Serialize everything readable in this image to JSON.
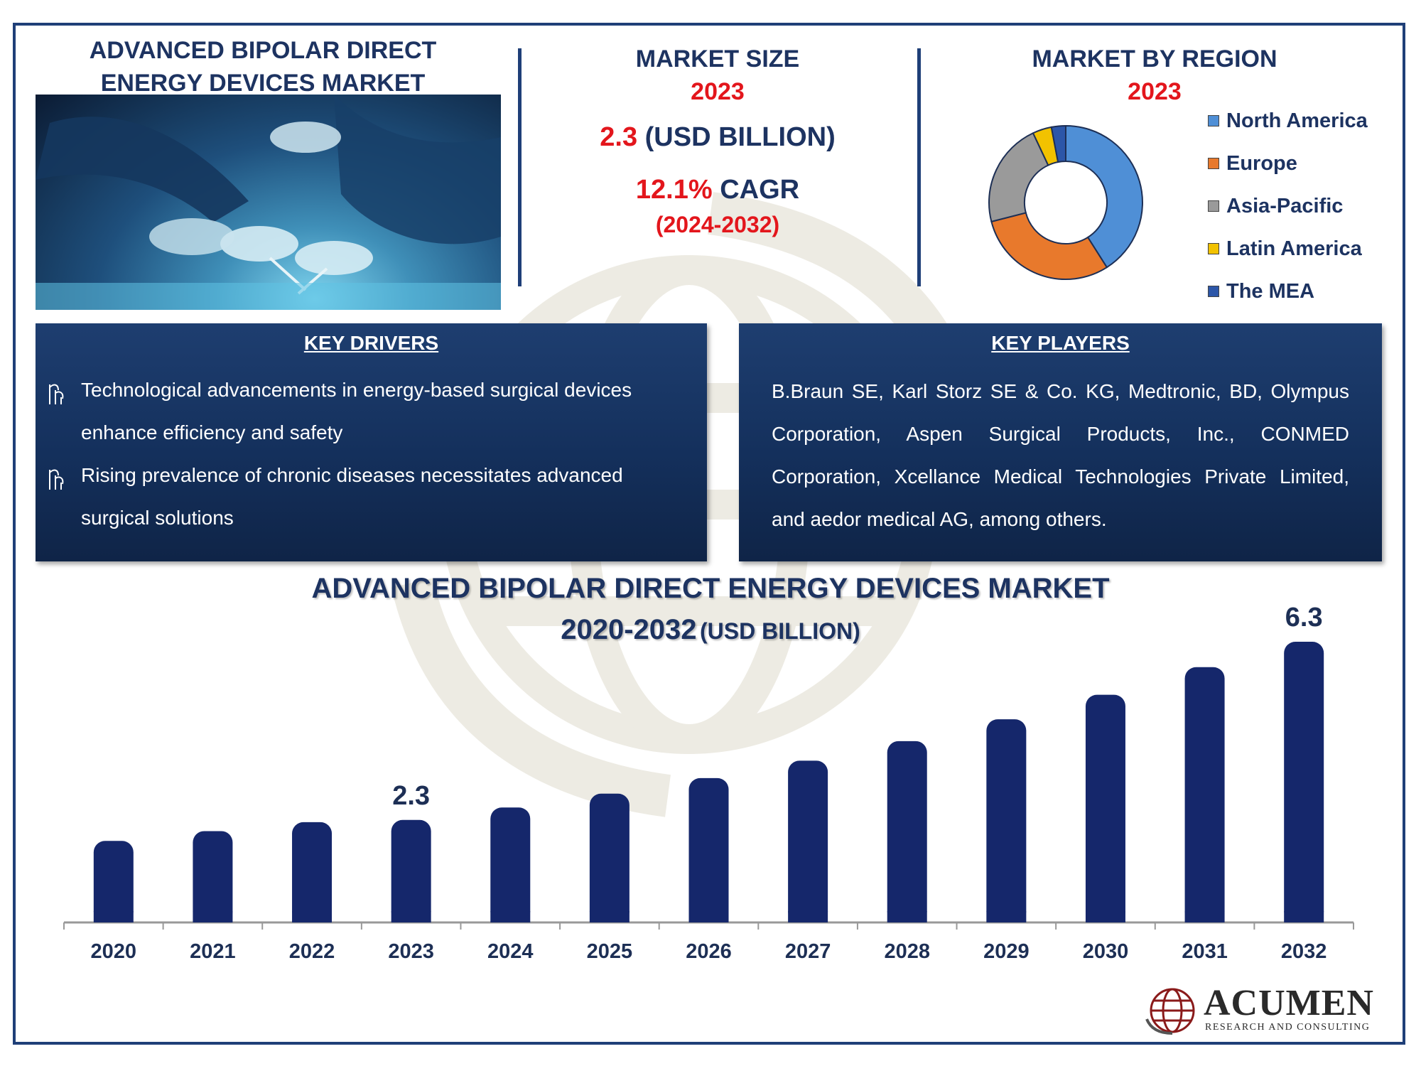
{
  "header": {
    "title": "ADVANCED BIPOLAR DIRECT ENERGY DEVICES MARKET"
  },
  "market_size": {
    "heading": "MARKET SIZE",
    "year": "2023",
    "value": "2.3",
    "unit": "(USD BILLION)",
    "cagr_value": "12.1%",
    "cagr_label": "CAGR",
    "cagr_period": "(2024-2032)"
  },
  "market_by_region": {
    "heading": "MARKET BY REGION",
    "year": "2023"
  },
  "key_drivers": {
    "title": "KEY DRIVERS",
    "items": [
      "Technological advancements in energy-based surgical devices enhance efficiency and safety",
      "Rising prevalence of chronic diseases necessitates advanced surgical solutions"
    ]
  },
  "key_players": {
    "title": "KEY PLAYERS",
    "text": "B.Braun SE, Karl Storz SE & Co. KG, Medtronic, BD, Olympus Corporation, Aspen Surgical Products, Inc., CONMED Corporation, Xcellance Medical Technologies Private Limited, and aedor medical AG, among others."
  },
  "bar_chart_title": {
    "line1": "ADVANCED BIPOLAR DIRECT ENERGY DEVICES MARKET",
    "line2_main": "2020-2032",
    "line2_unit": "(USD BILLION)"
  },
  "logo": {
    "name": "ACUMEN",
    "tagline": "RESEARCH AND CONSULTING"
  },
  "icons": {
    "driver_bullet": "plant-sprout-icon",
    "logo_mark": "globe-icon"
  },
  "chart_data": [
    {
      "type": "pie",
      "variant": "donut",
      "categories": [
        "North America",
        "Europe",
        "Asia-Pacific",
        "Latin America",
        "The MEA"
      ],
      "values": [
        41,
        30,
        22,
        4,
        3
      ],
      "colors": [
        "#4f8fd6",
        "#e8792c",
        "#9a9a9a",
        "#f2c200",
        "#2c56a8"
      ],
      "legend": "right"
    },
    {
      "type": "bar",
      "categories": [
        "2020",
        "2021",
        "2022",
        "2023",
        "2024",
        "2025",
        "2026",
        "2027",
        "2028",
        "2029",
        "2030",
        "2031",
        "2032"
      ],
      "values": [
        1.83,
        2.05,
        2.25,
        2.3,
        2.58,
        2.89,
        3.24,
        3.63,
        4.07,
        4.56,
        5.11,
        5.73,
        6.3
      ],
      "data_labels": {
        "2023": "2.3",
        "2032": "6.3"
      },
      "ylim": [
        0,
        6.8
      ],
      "grid": false,
      "bar_color": "#15276b"
    }
  ]
}
